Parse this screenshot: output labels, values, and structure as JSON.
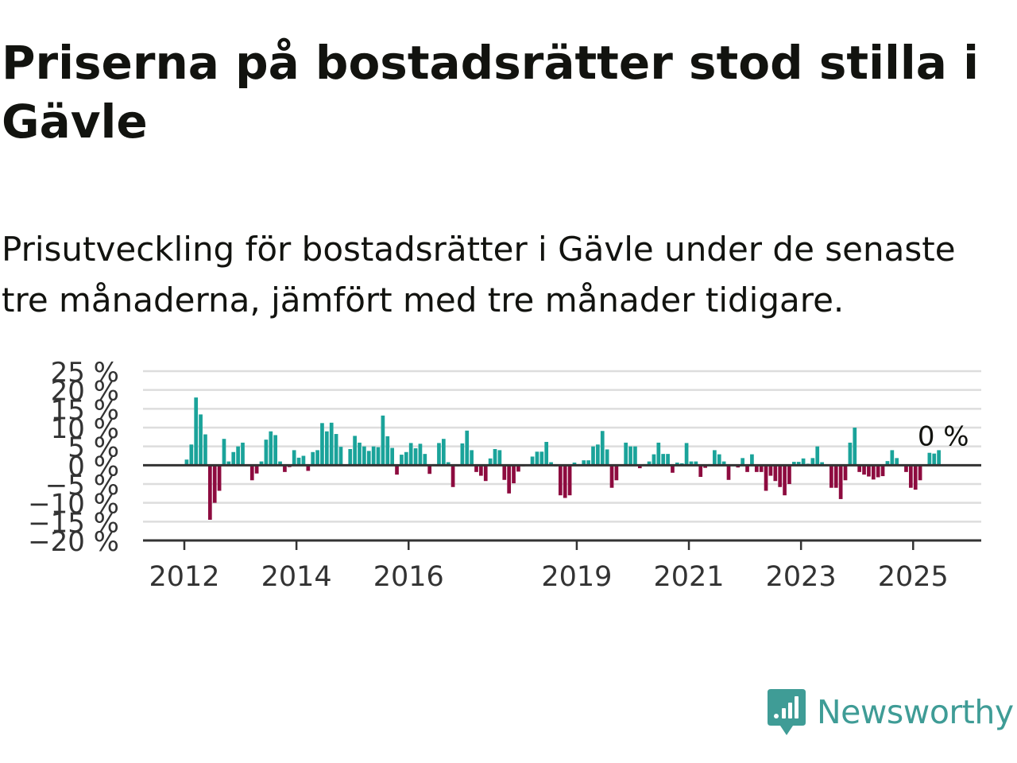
{
  "header": {
    "title": "Priserna på bostadsrätter stod stilla i Gävle",
    "subtitle": "Prisutveckling för bostadsrätter i Gävle under de senaste tre månaderna, jämfört med tre månader tidigare."
  },
  "brand": {
    "name": "Newsworthy",
    "icon": "newsworthy-logo-icon",
    "color": "#3f9c96"
  },
  "colors": {
    "positive": "#1aa39a",
    "negative": "#8d0b3f",
    "grid": "#dddddd",
    "axis": "#333333"
  },
  "chart_data": {
    "type": "bar",
    "ylim": [
      -20,
      25
    ],
    "yticks": [
      {
        "value": 25,
        "label": "25 %"
      },
      {
        "value": 20,
        "label": "20 %"
      },
      {
        "value": 15,
        "label": "15 %"
      },
      {
        "value": 10,
        "label": "10 %"
      },
      {
        "value": 5,
        "label": "5 %"
      },
      {
        "value": 0,
        "label": "0 %"
      },
      {
        "value": -5,
        "label": "−5 %"
      },
      {
        "value": -10,
        "label": "−10 %"
      },
      {
        "value": -15,
        "label": "−15 %"
      },
      {
        "value": -20,
        "label": "−20 %"
      }
    ],
    "xticks": [
      "2012",
      "2014",
      "2016",
      "2019",
      "2021",
      "2023",
      "2025"
    ],
    "x_start": "2012-01",
    "x_end": "2025-06",
    "grid": true,
    "annotation": {
      "text": "0 %"
    },
    "values": [
      1.5,
      5.5,
      18,
      13.5,
      8.2,
      -14.5,
      -10,
      -6.8,
      7,
      1,
      3.5,
      5,
      6,
      0.2,
      -4,
      -2.2,
      1,
      6.8,
      9,
      8,
      1,
      -1.8,
      -0.5,
      4,
      2,
      2.5,
      -1.5,
      3.5,
      4,
      11.2,
      9,
      11.3,
      8.3,
      4.9,
      0.2,
      4.3,
      7.8,
      6,
      5,
      3.8,
      5,
      4.8,
      13.2,
      7.7,
      4.6,
      -2.5,
      2.8,
      3.5,
      5.9,
      4.5,
      5.7,
      3,
      -2.3,
      0.3,
      5.9,
      7,
      0.8,
      -5.8,
      -0.3,
      5.8,
      9.2,
      4,
      -1.8,
      -2.8,
      -4.2,
      1.8,
      4.3,
      4,
      -3.9,
      -7.5,
      -4.8,
      -1.7,
      -0.3,
      0.2,
      2.3,
      3.6,
      3.6,
      6.2,
      0.8,
      -0.3,
      -8,
      -8.7,
      -8,
      0.7,
      0.3,
      1.3,
      1.3,
      5,
      5.5,
      9.1,
      4.2,
      -6,
      -4,
      0.2,
      6,
      5,
      5,
      -0.8,
      0.3,
      1,
      2.9,
      6,
      3,
      3,
      -2,
      0.7,
      0.5,
      5.9,
      1,
      1,
      -3.1,
      -0.7,
      0.3,
      4,
      2.9,
      1,
      -3.9,
      0.2,
      -0.6,
      1.9,
      -1.8,
      2.9,
      -1.8,
      -1.8,
      -6.8,
      -2.8,
      -4.2,
      -5.8,
      -8,
      -5,
      0.9,
      0.9,
      1.8,
      0.4,
      1.9,
      5,
      0.8,
      -0.2,
      -6,
      -6,
      -9,
      -4,
      6,
      10,
      -1.8,
      -2.5,
      -3,
      -3.8,
      -3.2,
      -2.9,
      1.1,
      4,
      1.9,
      0.1,
      -1.8,
      -6,
      -6.5,
      -4,
      0.1,
      3.3,
      3.1,
      4
    ]
  }
}
